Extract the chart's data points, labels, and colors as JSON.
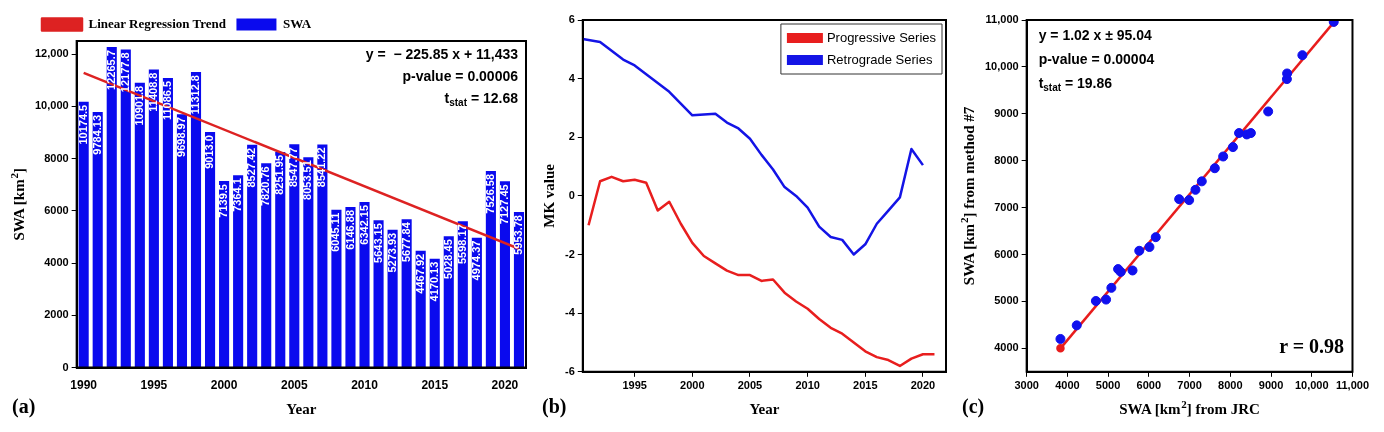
{
  "chart_data": [
    {
      "type": "bar",
      "categories": [
        "1990",
        null,
        null,
        null,
        null,
        "1995",
        null,
        null,
        null,
        null,
        "2000",
        null,
        null,
        null,
        null,
        "2005",
        null,
        null,
        null,
        null,
        "2010",
        null,
        null,
        null,
        null,
        "2015",
        null,
        null,
        null,
        null,
        "2020",
        null
      ],
      "series": [
        {
          "name": "SWA",
          "color": "#0a0aee",
          "values": [
            10174.5,
            9784.13,
            12265.7,
            12177.8,
            10901.8,
            11408.8,
            11086.5,
            9698.97,
            11312.8,
            9013.0,
            7139.5,
            7364.1,
            8527.42,
            7820.76,
            8251.95,
            8547.77,
            8053.51,
            8541.22,
            6045.11,
            6146.88,
            6342.15,
            5643.15,
            5273.93,
            5677.84,
            4467.92,
            4170.13,
            5028.45,
            5598.17,
            4974.37,
            7526.58,
            7127.45,
            5953.78
          ],
          "value_labels": [
            "10174.5",
            "9784.13",
            "12265.7",
            "12177.8",
            "10901.8",
            "11408.8",
            "11086.5",
            "9698.97",
            "11312.8",
            "9013.0",
            "7139.5",
            "7364.1",
            "8527.42",
            "7820.76",
            "8251.95",
            "8547.77",
            "8053.51",
            "8541.22",
            "6045.11",
            "6146.88",
            "6342.15",
            "5643.15",
            "5273.93",
            "5677.84",
            "4467.92",
            "4170.13",
            "5028.45",
            "5598.17",
            "4974.37",
            "7526.58",
            "7127.45",
            "5953.78"
          ]
        },
        {
          "name": "Linear Regression Trend",
          "type": "line",
          "color": "#dd2222",
          "values": [
            11280,
            null,
            null,
            null,
            null,
            null,
            null,
            null,
            null,
            null,
            null,
            null,
            null,
            null,
            null,
            null,
            null,
            null,
            null,
            null,
            null,
            null,
            null,
            null,
            null,
            null,
            null,
            null,
            null,
            null,
            null,
            4550
          ]
        }
      ],
      "ylim": [
        0,
        12500
      ],
      "yticks": [
        0,
        2000,
        4000,
        6000,
        8000,
        {
          "value": 10000,
          "label": "10,000"
        },
        {
          "value": 12000,
          "label": "12,000"
        }
      ],
      "xlabel": "Year",
      "ylabel": "SWA [km$^{2}$]",
      "legend": "top left",
      "grid": false,
      "marker": "none",
      "annotations": [
        "y =  − 225.85 x + 11,433",
        "p-value = 0.00006",
        "t$_{stat}$ = 12.68",
        "(a)"
      ]
    },
    {
      "type": "line",
      "xlim": [
        1990.5,
        2022
      ],
      "xticks": [
        1995,
        2000,
        2005,
        2010,
        2015,
        2020
      ],
      "ylim": [
        -6,
        6
      ],
      "yticks": [
        -6,
        -4,
        -2,
        0,
        2,
        4,
        6
      ],
      "series": [
        {
          "name": "Progressive Series",
          "color": "#e81e1e",
          "x": [
            1991,
            1992,
            1993,
            1994,
            1995,
            1996,
            1997,
            1998,
            1999,
            2000,
            2001,
            2002,
            2003,
            2004,
            2005,
            2006,
            2007,
            2008,
            2009,
            2010,
            2011,
            2012,
            2013,
            2014,
            2015,
            2016,
            2017,
            2018,
            2019,
            2020,
            2021
          ],
          "values": [
            -1.0,
            0.5,
            0.65,
            0.5,
            0.55,
            0.45,
            -0.5,
            -0.2,
            -0.95,
            -1.6,
            -2.05,
            -2.3,
            -2.55,
            -2.7,
            -2.7,
            -2.9,
            -2.85,
            -3.3,
            -3.6,
            -3.85,
            -4.2,
            -4.5,
            -4.7,
            -5.0,
            -5.3,
            -5.5,
            -5.6,
            -5.8,
            -5.55,
            -5.4,
            -5.4
          ]
        },
        {
          "name": "Retrograde Series",
          "color": "#1414e6",
          "x": [
            1990.5,
            1992,
            1993,
            1994,
            1995,
            1996,
            1997,
            1998,
            1999,
            2000,
            2001,
            2002,
            2003,
            2004,
            2005,
            2006,
            2007,
            2008,
            2009,
            2010,
            2011,
            2012,
            2013,
            2014,
            2015,
            2016,
            2017,
            2018,
            2019,
            2020
          ],
          "values": [
            5.35,
            5.25,
            4.95,
            4.65,
            4.45,
            4.15,
            3.85,
            3.55,
            3.15,
            2.75,
            2.78,
            2.8,
            2.5,
            2.3,
            1.95,
            1.4,
            0.9,
            0.3,
            0.0,
            -0.4,
            -1.05,
            -1.4,
            -1.5,
            -2.0,
            -1.65,
            -0.95,
            -0.5,
            -0.05,
            1.6,
            1.05
          ]
        }
      ],
      "xlabel": "Year",
      "ylabel": "MK value",
      "legend": "top right",
      "grid": false,
      "marker": "none",
      "annotations": [
        "(b)"
      ]
    },
    {
      "type": "scatter",
      "xlim": [
        3000,
        11000
      ],
      "xticks": [
        3000,
        4000,
        5000,
        6000,
        7000,
        8000,
        9000,
        {
          "value": 10000,
          "label": "10,000"
        },
        {
          "value": 11000,
          "label": "11,000"
        }
      ],
      "ylim": [
        3500,
        11000
      ],
      "yticks": [
        4000,
        5000,
        6000,
        7000,
        8000,
        9000,
        {
          "value": 10000,
          "label": "10,000"
        },
        {
          "value": 11000,
          "label": "11,000"
        }
      ],
      "series": [
        {
          "color": "#1010ee",
          "x": [
            3830,
            4230,
            4700,
            4950,
            5080,
            5245,
            5310,
            5600,
            5765,
            6015,
            6170,
            6745,
            6990,
            7145,
            7300,
            7620,
            7825,
            8065,
            8215,
            8405,
            8505,
            8930,
            9390,
            9395,
            9770,
            10540
          ],
          "values": [
            4200,
            4490,
            5010,
            5040,
            5290,
            5690,
            5630,
            5660,
            6080,
            6160,
            6370,
            7180,
            7160,
            7380,
            7560,
            7840,
            8090,
            8290,
            8590,
            8560,
            8590,
            9050,
            9740,
            9860,
            10250,
            10960
          ]
        },
        {
          "type": "line",
          "color": "#e81c1c",
          "x": [
            3830,
            10540
          ],
          "values": [
            4000,
            10950
          ]
        }
      ],
      "xlabel": "SWA [km$^{2}$] from JRC",
      "ylabel": "SWA [km$^{2}$] from method #7",
      "grid": false,
      "marker": "circle",
      "annotations": [
        "y = 1.02 x ± 95.04",
        "p-value = 0.00004",
        "t$_{stat}$ = 19.86",
        "r = 0.98",
        "(c)"
      ]
    }
  ]
}
